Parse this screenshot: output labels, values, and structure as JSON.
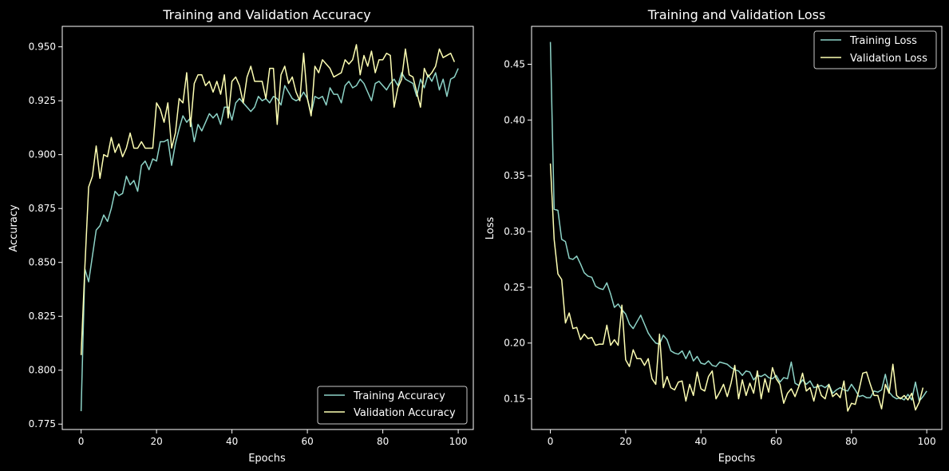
{
  "figure": {
    "background": "#000000",
    "foreground": "#ffffff",
    "series_colors": [
      "#8dd3c7",
      "#feffb3"
    ]
  },
  "chart_data": [
    {
      "type": "line",
      "title": "Training and Validation Accuracy",
      "xlabel": "Epochs",
      "ylabel": "Accuracy",
      "xlim": [
        -5,
        104
      ],
      "ylim": [
        0.7725,
        0.9595
      ],
      "x_ticks": [
        0,
        20,
        40,
        60,
        80,
        100
      ],
      "y_ticks": [
        0.775,
        0.8,
        0.825,
        0.85,
        0.875,
        0.9,
        0.925,
        0.95
      ],
      "x_tick_labels": [
        "0",
        "20",
        "40",
        "60",
        "80",
        "100"
      ],
      "y_tick_labels": [
        "0.775",
        "0.800",
        "0.825",
        "0.850",
        "0.875",
        "0.900",
        "0.925",
        "0.950"
      ],
      "grid": false,
      "legend_position": "lower right",
      "series": [
        {
          "name": "Training Accuracy",
          "color": "#8dd3c7",
          "x_start": 0,
          "values": [
            0.781,
            0.847,
            0.841,
            0.853,
            0.865,
            0.867,
            0.872,
            0.869,
            0.875,
            0.883,
            0.881,
            0.882,
            0.89,
            0.886,
            0.888,
            0.883,
            0.895,
            0.897,
            0.893,
            0.898,
            0.897,
            0.906,
            0.906,
            0.907,
            0.895,
            0.905,
            0.912,
            0.918,
            0.915,
            0.917,
            0.906,
            0.914,
            0.911,
            0.915,
            0.919,
            0.917,
            0.919,
            0.914,
            0.922,
            0.922,
            0.916,
            0.924,
            0.926,
            0.924,
            0.922,
            0.92,
            0.922,
            0.927,
            0.925,
            0.926,
            0.924,
            0.927,
            0.926,
            0.923,
            0.932,
            0.929,
            0.926,
            0.925,
            0.926,
            0.929,
            0.926,
            0.919,
            0.927,
            0.926,
            0.927,
            0.923,
            0.931,
            0.928,
            0.928,
            0.924,
            0.932,
            0.934,
            0.931,
            0.932,
            0.935,
            0.933,
            0.929,
            0.925,
            0.933,
            0.934,
            0.932,
            0.93,
            0.933,
            0.935,
            0.932,
            0.938,
            0.935,
            0.934,
            0.933,
            0.927,
            0.935,
            0.931,
            0.937,
            0.934,
            0.938,
            0.93,
            0.935,
            0.927,
            0.935,
            0.936,
            0.94
          ]
        },
        {
          "name": "Validation Accuracy",
          "color": "#feffb3",
          "x_start": 0,
          "values": [
            0.807,
            0.848,
            0.885,
            0.89,
            0.904,
            0.889,
            0.9,
            0.899,
            0.908,
            0.901,
            0.905,
            0.899,
            0.903,
            0.91,
            0.903,
            0.903,
            0.906,
            0.903,
            0.903,
            0.903,
            0.924,
            0.921,
            0.915,
            0.924,
            0.903,
            0.91,
            0.926,
            0.924,
            0.938,
            0.913,
            0.933,
            0.937,
            0.937,
            0.932,
            0.934,
            0.929,
            0.934,
            0.928,
            0.937,
            0.917,
            0.934,
            0.936,
            0.932,
            0.924,
            0.936,
            0.941,
            0.934,
            0.934,
            0.934,
            0.926,
            0.94,
            0.94,
            0.914,
            0.937,
            0.941,
            0.933,
            0.936,
            0.929,
            0.925,
            0.947,
            0.926,
            0.918,
            0.941,
            0.938,
            0.944,
            0.942,
            0.94,
            0.936,
            0.937,
            0.938,
            0.944,
            0.942,
            0.944,
            0.951,
            0.937,
            0.946,
            0.941,
            0.948,
            0.938,
            0.944,
            0.944,
            0.947,
            0.946,
            0.922,
            0.931,
            0.935,
            0.949,
            0.937,
            0.936,
            0.929,
            0.922,
            0.94,
            0.936,
            0.938,
            0.941,
            0.949,
            0.945,
            0.946,
            0.947,
            0.943
          ]
        }
      ]
    },
    {
      "type": "line",
      "title": "Training and Validation Loss",
      "xlabel": "Epochs",
      "ylabel": "Loss",
      "xlim": [
        -5,
        104
      ],
      "ylim": [
        0.1225,
        0.484
      ],
      "x_ticks": [
        0,
        20,
        40,
        60,
        80,
        100
      ],
      "y_ticks": [
        0.15,
        0.2,
        0.25,
        0.3,
        0.35,
        0.4,
        0.45
      ],
      "x_tick_labels": [
        "0",
        "20",
        "40",
        "60",
        "80",
        "100"
      ],
      "y_tick_labels": [
        "0.15",
        "0.20",
        "0.25",
        "0.30",
        "0.35",
        "0.40",
        "0.45"
      ],
      "grid": false,
      "legend_position": "upper right",
      "series": [
        {
          "name": "Training Loss",
          "color": "#8dd3c7",
          "x_start": 0,
          "values": [
            0.47,
            0.32,
            0.319,
            0.293,
            0.291,
            0.276,
            0.275,
            0.278,
            0.271,
            0.263,
            0.26,
            0.259,
            0.251,
            0.249,
            0.248,
            0.254,
            0.244,
            0.232,
            0.235,
            0.23,
            0.226,
            0.217,
            0.213,
            0.219,
            0.225,
            0.217,
            0.209,
            0.204,
            0.2,
            0.199,
            0.207,
            0.203,
            0.193,
            0.191,
            0.19,
            0.193,
            0.186,
            0.193,
            0.184,
            0.188,
            0.182,
            0.181,
            0.184,
            0.18,
            0.179,
            0.183,
            0.182,
            0.181,
            0.178,
            0.176,
            0.175,
            0.171,
            0.175,
            0.174,
            0.167,
            0.171,
            0.17,
            0.172,
            0.169,
            0.168,
            0.171,
            0.165,
            0.169,
            0.168,
            0.183,
            0.164,
            0.162,
            0.167,
            0.163,
            0.166,
            0.16,
            0.161,
            0.162,
            0.16,
            0.163,
            0.155,
            0.158,
            0.16,
            0.158,
            0.157,
            0.163,
            0.158,
            0.152,
            0.153,
            0.151,
            0.151,
            0.157,
            0.156,
            0.158,
            0.172,
            0.156,
            0.152,
            0.15,
            0.151,
            0.149,
            0.154,
            0.149,
            0.165,
            0.148,
            0.152,
            0.157
          ]
        },
        {
          "name": "Validation Loss",
          "color": "#feffb3",
          "x_start": 0,
          "values": [
            0.361,
            0.293,
            0.262,
            0.257,
            0.218,
            0.227,
            0.213,
            0.214,
            0.203,
            0.208,
            0.204,
            0.205,
            0.198,
            0.199,
            0.199,
            0.216,
            0.198,
            0.203,
            0.198,
            0.234,
            0.185,
            0.179,
            0.194,
            0.186,
            0.186,
            0.18,
            0.186,
            0.168,
            0.163,
            0.208,
            0.16,
            0.17,
            0.16,
            0.158,
            0.165,
            0.166,
            0.148,
            0.163,
            0.153,
            0.174,
            0.159,
            0.157,
            0.17,
            0.175,
            0.15,
            0.156,
            0.163,
            0.152,
            0.164,
            0.18,
            0.15,
            0.167,
            0.153,
            0.164,
            0.155,
            0.175,
            0.15,
            0.168,
            0.156,
            0.178,
            0.168,
            0.163,
            0.146,
            0.155,
            0.159,
            0.152,
            0.161,
            0.173,
            0.157,
            0.16,
            0.148,
            0.163,
            0.153,
            0.15,
            0.163,
            0.152,
            0.155,
            0.151,
            0.166,
            0.139,
            0.146,
            0.145,
            0.158,
            0.173,
            0.174,
            0.163,
            0.153,
            0.153,
            0.141,
            0.163,
            0.155,
            0.181,
            0.153,
            0.15,
            0.153,
            0.149,
            0.155,
            0.14,
            0.147,
            0.16
          ]
        }
      ]
    }
  ]
}
